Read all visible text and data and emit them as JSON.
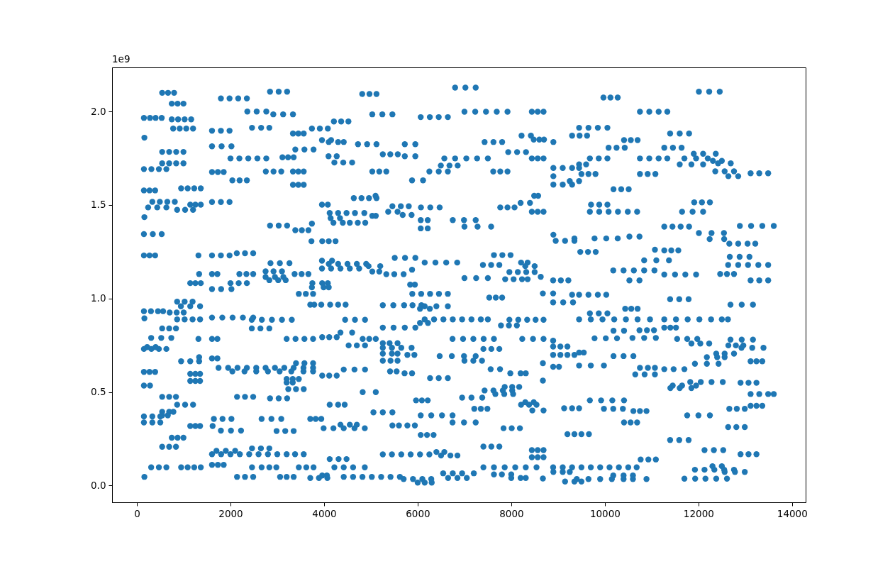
{
  "chart_data": {
    "type": "scatter",
    "color": "#1f77b4",
    "marker": "circle",
    "grid": false,
    "xlim": [
      -531,
      14291
    ],
    "ylim": [
      -0.09,
      2.236
    ],
    "xticks": [
      0,
      2000,
      4000,
      6000,
      8000,
      10000,
      12000,
      14000
    ],
    "yticks": [
      {
        "value": 0,
        "label": "0.0"
      },
      0.5,
      {
        "value": 1,
        "label": "1.0"
      },
      1.5,
      {
        "value": 2,
        "label": "2.0"
      }
    ],
    "annotations": [
      "1e9"
    ],
    "x": [
      540,
      665,
      795,
      745,
      870,
      995,
      150,
      280,
      400,
      530,
      745,
      880,
      1020,
      1160,
      775,
      915,
      1055,
      1200,
      160,
      540,
      690,
      840,
      995,
      540,
      690,
      840,
      995,
      150,
      310,
      470,
      630,
      150,
      270,
      390,
      945,
      1085,
      1225,
      1365,
      330,
      490,
      650,
      810,
      240,
      435,
      630,
      1140,
      1250,
      1365,
      860,
      1030,
      1200,
      160,
      150,
      340,
      530,
      150,
      270,
      390,
      1315,
      1795,
      1980,
      2165,
      2350,
      2845,
      3030,
      3210,
      2360,
      2560,
      2765,
      2915,
      3125,
      3335,
      2460,
      2655,
      2830,
      1605,
      1795,
      1980,
      3335,
      3450,
      3565,
      3740,
      3910,
      4080,
      4210,
      4365,
      4520,
      1605,
      1810,
      2020,
      3955,
      4150,
      4100,
      4300,
      4420,
      3385,
      3580,
      3775,
      2000,
      2190,
      2380,
      2575,
      2765,
      3110,
      3230,
      3350,
      4095,
      4270,
      4220,
      4410,
      4600,
      1605,
      1730,
      1855,
      2755,
      2920,
      3085,
      3335,
      3450,
      3565,
      2040,
      2195,
      2350,
      3335,
      3450,
      3565,
      1605,
      1795,
      1980,
      3955,
      4080,
      4120,
      4300,
      4480,
      4660,
      4860,
      4140,
      4340,
      4200,
      4400,
      4550,
      4720,
      4880,
      5030,
      5105,
      2845,
      3030,
      3210,
      3385,
      3525,
      3665,
      3740,
      3730,
      3960,
      4100,
      4245,
      1605,
      1795,
      1980,
      2135,
      2310,
      2485,
      3955,
      4170,
      2855,
      3055,
      3260,
      4100,
      4300,
      4500,
      4700,
      4900,
      3955,
      4150,
      4350,
      4550,
      4750,
      1330,
      1605,
      1720,
      2190,
      2340,
      2485,
      3370,
      3520,
      3665,
      2750,
      2920,
      3100,
      2750,
      2950,
      3130,
      2830,
      3020,
      3180,
      1140,
      1250,
      1365,
      2000,
      2175,
      2350,
      3750,
      3960,
      4080,
      1605,
      1800,
      2020,
      3740,
      3990,
      4100,
      3460,
      3610,
      3765,
      3705,
      3790,
      3940,
      4130,
      4300,
      4460,
      860,
      1020,
      1190,
      940,
      1140,
      1350,
      150,
      300,
      450,
      560,
      700,
      850,
      1000,
      160,
      860,
      1020,
      1190,
      1350,
      1605,
      1825,
      2045,
      2265,
      2485,
      2455,
      2670,
      2885,
      3100,
      3310,
      540,
      690,
      835,
      2455,
      2640,
      2830,
      305,
      520,
      735,
      1315,
      1605,
      1720,
      3200,
      3390,
      3580,
      3765,
      3960,
      4110,
      4270,
      150,
      310,
      470,
      630,
      220,
      400,
      945,
      1140,
      1330,
      1330,
      1605,
      1720,
      1745,
      1950,
      2150,
      2350,
      2550,
      2750,
      2950,
      3150,
      3350,
      3560,
      3765,
      2040,
      2300,
      2550,
      2800,
      3050,
      3300,
      3560,
      3765,
      3400,
      3580,
      3765,
      150,
      270,
      390,
      1140,
      1250,
      1350,
      1140,
      1250,
      1350,
      3960,
      4110,
      4270,
      3200,
      3330,
      3460,
      3200,
      3330,
      150,
      280,
      3235,
      3400,
      3565,
      540,
      690,
      835,
      2140,
      2310,
      2485,
      2845,
      3030,
      3210,
      860,
      1030,
      1200,
      4120,
      4300,
      4440,
      540,
      690,
      780,
      540,
      660,
      150,
      330,
      500,
      150,
      330,
      500,
      1645,
      1830,
      2020,
      2665,
      2875,
      3085,
      3705,
      3820,
      3940,
      1140,
      1250,
      1350,
      1618,
      1795,
      2010,
      2225,
      2985,
      3170,
      3350,
      3990,
      4200,
      4420,
      4650,
      4870,
      4350,
      4550,
      4700,
      745,
      870,
      995,
      540,
      690,
      835,
      1605,
      1800,
      2000,
      2200,
      2400,
      2600,
      2800,
      3000,
      3200,
      3380,
      3565,
      1700,
      1900,
      2100,
      2460,
      2650,
      2830,
      4120,
      4310,
      4480,
      1605,
      1730,
      1855,
      305,
      470,
      630,
      945,
      1085,
      1225,
      1365,
      2460,
      2665,
      2830,
      2980,
      3460,
      3620,
      3775,
      4220,
      4420,
      4620,
      4870,
      160,
      2140,
      2310,
      2485,
      3060,
      3200,
      3350,
      4420,
      4620,
      4820,
      5020,
      5220,
      5420,
      5620,
      3705,
      3890,
      4070,
      3960,
      4060,
      4815,
      4970,
      5120,
      6800,
      7020,
      7240,
      5030,
      5245,
      5460,
      6065,
      6260,
      6450,
      6645,
      7000,
      7230,
      7460,
      7690,
      7920,
      8440,
      8565,
      8690,
      9450,
      9650,
      9850,
      10055,
      8220,
      8420,
      9300,
      9460,
      9620,
      8480,
      8600,
      8700,
      8900,
      7430,
      7620,
      7805,
      4725,
      4920,
      5120,
      5725,
      5950,
      7935,
      8125,
      8315,
      5255,
      5415,
      5575,
      5725,
      5950,
      6570,
      6800,
      7040,
      7270,
      7500,
      8440,
      8565,
      8690,
      9680,
      9870,
      10055,
      6495,
      6680,
      6855,
      5030,
      5180,
      5330,
      6250,
      6450,
      6645,
      7615,
      7765,
      7920,
      5880,
      6115,
      8900,
      9100,
      9300,
      9450,
      8900,
      8900,
      9100,
      9300,
      9250,
      9450,
      9450,
      9600,
      9500,
      9650,
      9800,
      4635,
      4800,
      4960,
      5120,
      5100,
      5460,
      5640,
      5810,
      5370,
      5570,
      5680,
      5870,
      6070,
      6270,
      6470,
      6065,
      6215,
      6750,
      6990,
      7240,
      6065,
      6215,
      7000,
      7280,
      7570,
      7765,
      7920,
      8070,
      8200,
      8400,
      8490,
      8575,
      8440,
      8565,
      8690,
      8900,
      8950,
      9150,
      9350,
      9475,
      9640,
      9805,
      7630,
      7810,
      7985,
      5510,
      5730,
      5950,
      4950,
      5200,
      6150,
      6380,
      6610,
      6845,
      7395,
      7570,
      7745,
      8210,
      8350,
      8300,
      8500,
      7960,
      8140,
      8320,
      8500,
      7870,
      8050,
      8230,
      8350,
      8630,
      5030,
      5180,
      5330,
      5500,
      5700,
      5880,
      7000,
      7250,
      7500,
      8895,
      9060,
      9220,
      5840,
      5940,
      5885,
      6075,
      6265,
      6455,
      6645,
      7530,
      7670,
      7805,
      8675,
      8895,
      9300,
      9450,
      9650,
      9850,
      10030,
      8895,
      9110,
      9320,
      5255,
      5480,
      5710,
      5890,
      6080,
      6150,
      6400,
      6645,
      6050,
      6260,
      4450,
      4660,
      4875,
      6150,
      6350,
      6550,
      6750,
      6950,
      7150,
      7350,
      7500,
      6050,
      6220,
      7960,
      8150,
      8340,
      8520,
      8690,
      7780,
      7950,
      8120,
      9450,
      9700,
      9950,
      10200,
      10450,
      10700,
      10965,
      11270,
      11520,
      11770,
      12020,
      12270,
      12500,
      12630,
      5255,
      5485,
      5725,
      5950,
      4350,
      4600,
      4825,
      4965,
      5105,
      6745,
      6970,
      7190,
      7410,
      7630,
      8235,
      8465,
      8690,
      8895,
      8895,
      9050,
      9200,
      8895,
      9050,
      9200,
      9350,
      9450,
      9550,
      9780,
      10020,
      10260,
      10590,
      10840,
      11090,
      4525,
      4700,
      4875,
      5255,
      5400,
      5570,
      5255,
      5450,
      5650,
      5870,
      5255,
      5450,
      5570,
      5780,
      5930,
      5255,
      5420,
      5570,
      7405,
      7575,
      7745,
      6470,
      6730,
      6990,
      7240,
      7000,
      7190,
      7375,
      8676,
      8895,
      9020,
      9450,
      9700,
      9980,
      4420,
      4650,
      4875,
      5410,
      5550,
      5720,
      5880,
      7560,
      7760,
      7980,
      8200,
      8310,
      6265,
      6450,
      6645,
      8676,
      7860,
      8020,
      8170,
      7430,
      7620,
      7820,
      8020,
      7660,
      7850,
      8040,
      6950,
      7150,
      7380,
      4825,
      5105,
      5965,
      6090,
      6215,
      8210,
      8380,
      8540,
      8450,
      8690,
      8300,
      8480,
      7210,
      7350,
      7490,
      9130,
      9300,
      9450,
      9980,
      10180,
      10385,
      10610,
      10750,
      10890,
      5055,
      5255,
      5460,
      6065,
      6290,
      6520,
      6745,
      6745,
      6990,
      7240,
      5460,
      5600,
      5780,
      5940,
      7835,
      8010,
      8185,
      6065,
      6200,
      6340,
      9200,
      9350,
      9500,
      9660,
      7405,
      7575,
      7745,
      8440,
      8565,
      8690,
      8440,
      8565,
      8690,
      5255,
      5450,
      5650,
      5850,
      6050,
      6250,
      6400,
      6570,
      6500,
      6700,
      6850,
      7405,
      7630,
      7860,
      8085,
      8310,
      8540,
      8895,
      9100,
      9300,
      9500,
      9700,
      9900,
      10100,
      10300,
      10500,
      10680,
      11925,
      12130,
      12340,
      12550,
      12760,
      12300,
      12500,
      12560,
      12780,
      12990,
      5700,
      5900,
      6100,
      6290,
      6000,
      6150,
      6300,
      6545,
      6750,
      6950,
      7200,
      6650,
      6850,
      7050,
      7630,
      7800,
      8000,
      8000,
      8200,
      8310,
      8676,
      8900,
      9100,
      9250,
      9150,
      9350,
      9500,
      9970,
      10120,
      10275,
      12010,
      12230,
      12455,
      10750,
      10950,
      11150,
      11335,
      11395,
      11600,
      11800,
      10410,
      10555,
      10700,
      10080,
      10250,
      10425,
      11270,
      11455,
      11640,
      11900,
      12100,
      12370,
      10750,
      10950,
      11150,
      11335,
      11700,
      11950,
      12200,
      11600,
      11850,
      12100,
      12310,
      12500,
      12420,
      12690,
      12360,
      12560,
      12760,
      12640,
      12850,
      13115,
      13300,
      13490,
      10750,
      10915,
      11080,
      10185,
      10350,
      10510,
      11910,
      12075,
      12245,
      9705,
      9880,
      10055,
      9680,
      9880,
      10080,
      10280,
      10490,
      10690,
      11650,
      11875,
      12100,
      11270,
      11445,
      11620,
      11800,
      12885,
      13125,
      13365,
      13610,
      12010,
      12280,
      12545,
      12240,
      12550,
      12660,
      12850,
      13050,
      13215,
      9350,
      9780,
      10030,
      10275,
      10525,
      10740,
      11070,
      11270,
      11420,
      11570,
      12670,
      12880,
      13090,
      10840,
      11100,
      11370,
      12635,
      12850,
      13060,
      13280,
      13490,
      10180,
      10400,
      10620,
      10840,
      11060,
      11270,
      11500,
      11720,
      11950,
      12465,
      12610,
      12760,
      10525,
      10740,
      13115,
      13300,
      13490,
      11395,
      11590,
      11790,
      12685,
      12925,
      13165,
      10435,
      10565,
      10700,
      9680,
      9870,
      10055,
      10185,
      10410,
      10740,
      10900,
      11050,
      11270,
      11400,
      11520,
      11545,
      11760,
      11975,
      11850,
      12040,
      12230,
      12685,
      12925,
      13165,
      12640,
      12800,
      12960,
      12920,
      13150,
      13390,
      10185,
      10400,
      10610,
      12380,
      12560,
      12760,
      12180,
      12400,
      12560,
      13115,
      13240,
      13365,
      11925,
      12180,
      12430,
      10750,
      10920,
      11070,
      11270,
      11470,
      11700,
      10650,
      10850,
      11070,
      11825,
      12050,
      12280,
      12520,
      11450,
      11650,
      11950,
      11400,
      11600,
      11850,
      12900,
      13070,
      13240,
      13115,
      13300,
      13490,
      13610,
      9680,
      9920,
      10160,
      10410,
      13115,
      13240,
      13365,
      12660,
      12820,
      12990,
      11760,
      12000,
      12245,
      10410,
      10550,
      10690,
      12635,
      12810,
      12990,
      11395,
      11590,
      11790,
      12130,
      12330,
      12530,
      12900,
      13070,
      13240,
      10765,
      10930,
      11090,
      9400,
      9650,
      9900,
      10150,
      10400,
      10600,
      10890,
      10180,
      10400,
      10600,
      11700,
      11930,
      12150,
      12380,
      12610
    ],
    "values": [
      2.1,
      2.1,
      2.1,
      2.042,
      2.042,
      2.042,
      1.966,
      1.966,
      1.966,
      1.966,
      1.958,
      1.958,
      1.958,
      1.958,
      1.909,
      1.909,
      1.909,
      1.909,
      1.86,
      1.784,
      1.784,
      1.784,
      1.784,
      1.723,
      1.723,
      1.723,
      1.723,
      1.692,
      1.692,
      1.692,
      1.692,
      1.578,
      1.578,
      1.578,
      1.589,
      1.589,
      1.589,
      1.589,
      1.517,
      1.517,
      1.517,
      1.517,
      1.487,
      1.487,
      1.487,
      1.502,
      1.502,
      1.502,
      1.474,
      1.474,
      1.474,
      1.435,
      1.344,
      1.344,
      1.344,
      1.23,
      1.23,
      1.23,
      1.23,
      2.07,
      2.07,
      2.07,
      2.07,
      2.106,
      2.106,
      2.106,
      2,
      2,
      2,
      1.985,
      1.985,
      1.985,
      1.913,
      1.913,
      1.913,
      1.897,
      1.897,
      1.897,
      1.882,
      1.882,
      1.882,
      1.909,
      1.909,
      1.909,
      1.947,
      1.947,
      1.947,
      1.814,
      1.814,
      1.814,
      1.847,
      1.847,
      1.837,
      1.837,
      1.837,
      1.797,
      1.797,
      1.797,
      1.749,
      1.749,
      1.749,
      1.749,
      1.749,
      1.755,
      1.755,
      1.755,
      1.761,
      1.761,
      1.727,
      1.727,
      1.727,
      1.676,
      1.676,
      1.676,
      1.679,
      1.679,
      1.679,
      1.679,
      1.679,
      1.679,
      1.632,
      1.632,
      1.632,
      1.608,
      1.608,
      1.608,
      1.516,
      1.516,
      1.516,
      1.502,
      1.502,
      1.457,
      1.457,
      1.457,
      1.457,
      1.457,
      1.43,
      1.43,
      1.405,
      1.405,
      1.405,
      1.405,
      1.405,
      1.442,
      1.442,
      1.39,
      1.39,
      1.39,
      1.365,
      1.365,
      1.365,
      1.4,
      1.306,
      1.306,
      1.306,
      1.306,
      1.23,
      1.23,
      1.23,
      1.242,
      1.242,
      1.242,
      1.202,
      1.202,
      1.189,
      1.189,
      1.189,
      1.185,
      1.185,
      1.185,
      1.185,
      1.185,
      1.16,
      1.16,
      1.16,
      1.16,
      1.16,
      1.131,
      1.131,
      1.131,
      1.131,
      1.131,
      1.131,
      1.131,
      1.131,
      1.131,
      1.145,
      1.145,
      1.145,
      1.115,
      1.115,
      1.115,
      1.098,
      1.098,
      1.098,
      1.082,
      1.082,
      1.082,
      1.082,
      1.082,
      1.082,
      1.082,
      1.082,
      1.082,
      1.05,
      1.05,
      1.05,
      1.06,
      1.06,
      1.06,
      1.025,
      1.025,
      1.025,
      0.967,
      0.967,
      0.967,
      0.967,
      0.967,
      0.967,
      0.983,
      0.983,
      0.983,
      0.958,
      0.958,
      0.958,
      0.932,
      0.932,
      0.932,
      0.932,
      0.925,
      0.925,
      0.925,
      0.894,
      0.888,
      0.888,
      0.888,
      0.888,
      0.898,
      0.898,
      0.898,
      0.898,
      0.898,
      0.886,
      0.886,
      0.886,
      0.886,
      0.886,
      0.84,
      0.84,
      0.84,
      0.84,
      0.84,
      0.84,
      0.789,
      0.789,
      0.789,
      0.784,
      0.784,
      0.784,
      0.784,
      0.784,
      0.784,
      0.784,
      0.793,
      0.793,
      0.793,
      0.73,
      0.73,
      0.73,
      0.73,
      0.74,
      0.74,
      0.664,
      0.664,
      0.664,
      0.686,
      0.679,
      0.679,
      0.629,
      0.629,
      0.629,
      0.629,
      0.629,
      0.629,
      0.629,
      0.629,
      0.629,
      0.629,
      0.629,
      0.61,
      0.61,
      0.61,
      0.61,
      0.61,
      0.61,
      0.61,
      0.61,
      0.654,
      0.654,
      0.654,
      0.607,
      0.607,
      0.607,
      0.597,
      0.597,
      0.597,
      0.559,
      0.559,
      0.559,
      0.587,
      0.587,
      0.587,
      0.569,
      0.569,
      0.569,
      0.55,
      0.55,
      0.534,
      0.534,
      0.515,
      0.515,
      0.515,
      0.474,
      0.474,
      0.474,
      0.474,
      0.474,
      0.474,
      0.466,
      0.466,
      0.466,
      0.432,
      0.432,
      0.432,
      0.432,
      0.432,
      0.432,
      0.394,
      0.394,
      0.394,
      0.375,
      0.375,
      0.369,
      0.369,
      0.369,
      0.337,
      0.337,
      0.337,
      0.356,
      0.356,
      0.356,
      0.356,
      0.356,
      0.356,
      0.356,
      0.356,
      0.356,
      0.318,
      0.318,
      0.318,
      0.318,
      0.293,
      0.293,
      0.293,
      0.291,
      0.291,
      0.291,
      0.306,
      0.306,
      0.306,
      0.306,
      0.306,
      0.325,
      0.325,
      0.325,
      0.255,
      0.255,
      0.255,
      0.207,
      0.207,
      0.207,
      0.167,
      0.167,
      0.167,
      0.167,
      0.167,
      0.167,
      0.167,
      0.167,
      0.167,
      0.167,
      0.167,
      0.185,
      0.185,
      0.185,
      0.198,
      0.198,
      0.198,
      0.141,
      0.141,
      0.141,
      0.11,
      0.11,
      0.11,
      0.097,
      0.097,
      0.097,
      0.097,
      0.097,
      0.097,
      0.097,
      0.097,
      0.097,
      0.097,
      0.097,
      0.097,
      0.097,
      0.097,
      0.097,
      0.097,
      0.097,
      0.097,
      0.046,
      0.046,
      0.046,
      0.046,
      0.046,
      0.046,
      0.046,
      0.046,
      0.046,
      0.046,
      0.046,
      0.046,
      0.046,
      0.046,
      0.04,
      0.04,
      0.04,
      0.053,
      0.053,
      2.094,
      2.094,
      2.094,
      2.128,
      2.128,
      2.128,
      1.985,
      1.985,
      1.985,
      1.97,
      1.97,
      1.97,
      1.97,
      1.999,
      1.999,
      1.999,
      1.999,
      1.999,
      1.999,
      1.999,
      1.999,
      1.913,
      1.913,
      1.913,
      1.913,
      1.871,
      1.871,
      1.871,
      1.871,
      1.871,
      1.85,
      1.85,
      1.85,
      1.837,
      1.837,
      1.837,
      1.837,
      1.825,
      1.825,
      1.825,
      1.825,
      1.825,
      1.783,
      1.783,
      1.783,
      1.771,
      1.771,
      1.771,
      1.761,
      1.761,
      1.749,
      1.749,
      1.749,
      1.749,
      1.749,
      1.749,
      1.749,
      1.749,
      1.749,
      1.749,
      1.749,
      1.711,
      1.711,
      1.711,
      1.679,
      1.679,
      1.679,
      1.679,
      1.679,
      1.679,
      1.679,
      1.679,
      1.679,
      1.632,
      1.632,
      1.698,
      1.698,
      1.698,
      1.698,
      1.654,
      1.609,
      1.609,
      1.609,
      1.628,
      1.628,
      1.717,
      1.717,
      1.666,
      1.666,
      1.666,
      1.537,
      1.537,
      1.537,
      1.537,
      1.549,
      1.493,
      1.493,
      1.493,
      1.464,
      1.464,
      1.447,
      1.447,
      1.487,
      1.487,
      1.487,
      1.419,
      1.419,
      1.419,
      1.419,
      1.419,
      1.375,
      1.375,
      1.384,
      1.384,
      1.384,
      1.487,
      1.487,
      1.487,
      1.511,
      1.511,
      1.549,
      1.549,
      1.464,
      1.464,
      1.464,
      1.341,
      1.308,
      1.308,
      1.308,
      1.249,
      1.249,
      1.249,
      1.232,
      1.232,
      1.232,
      1.217,
      1.217,
      1.217,
      1.173,
      1.173,
      1.192,
      1.192,
      1.192,
      1.192,
      1.179,
      1.179,
      1.179,
      1.192,
      1.192,
      1.173,
      1.173,
      1.141,
      1.141,
      1.141,
      1.141,
      1.103,
      1.103,
      1.103,
      1.103,
      1.116,
      1.144,
      1.144,
      1.13,
      1.13,
      1.13,
      1.154,
      1.109,
      1.109,
      1.109,
      1.097,
      1.097,
      1.097,
      1.074,
      1.074,
      1.025,
      1.025,
      1.025,
      1.025,
      1.025,
      1.005,
      1.005,
      1.005,
      1.027,
      1.027,
      1.02,
      1.02,
      1.02,
      1.02,
      1.02,
      0.979,
      0.979,
      0.979,
      0.964,
      0.964,
      0.964,
      0.964,
      0.964,
      0.958,
      0.958,
      0.958,
      0.945,
      0.945,
      0.886,
      0.886,
      0.886,
      0.888,
      0.888,
      0.888,
      0.888,
      0.888,
      0.888,
      0.888,
      0.888,
      0.869,
      0.869,
      0.886,
      0.886,
      0.886,
      0.886,
      0.886,
      0.856,
      0.856,
      0.856,
      0.888,
      0.888,
      0.888,
      0.888,
      0.888,
      0.888,
      0.888,
      0.888,
      0.888,
      0.888,
      0.888,
      0.888,
      0.888,
      0.888,
      0.844,
      0.844,
      0.844,
      0.844,
      0.818,
      0.818,
      0.784,
      0.784,
      0.784,
      0.784,
      0.784,
      0.784,
      0.784,
      0.784,
      0.784,
      0.784,
      0.784,
      0.774,
      0.743,
      0.743,
      0.743,
      0.698,
      0.698,
      0.698,
      0.698,
      0.711,
      0.711,
      0.787,
      0.787,
      0.787,
      0.789,
      0.789,
      0.789,
      0.749,
      0.749,
      0.749,
      0.761,
      0.761,
      0.761,
      0.736,
      0.736,
      0.736,
      0.736,
      0.705,
      0.705,
      0.705,
      0.698,
      0.698,
      0.667,
      0.667,
      0.667,
      0.73,
      0.73,
      0.73,
      0.692,
      0.692,
      0.692,
      0.692,
      0.667,
      0.667,
      0.667,
      0.654,
      0.635,
      0.635,
      0.641,
      0.641,
      0.641,
      0.62,
      0.62,
      0.62,
      0.61,
      0.61,
      0.6,
      0.6,
      0.622,
      0.622,
      0.6,
      0.6,
      0.6,
      0.574,
      0.574,
      0.574,
      0.561,
      0.527,
      0.527,
      0.527,
      0.508,
      0.508,
      0.508,
      0.508,
      0.489,
      0.489,
      0.489,
      0.47,
      0.47,
      0.47,
      0.499,
      0.499,
      0.455,
      0.455,
      0.455,
      0.432,
      0.432,
      0.432,
      0.401,
      0.401,
      0.445,
      0.445,
      0.41,
      0.41,
      0.41,
      0.413,
      0.413,
      0.413,
      0.41,
      0.41,
      0.41,
      0.398,
      0.398,
      0.398,
      0.391,
      0.391,
      0.391,
      0.375,
      0.375,
      0.375,
      0.375,
      0.337,
      0.337,
      0.337,
      0.321,
      0.321,
      0.321,
      0.321,
      0.306,
      0.306,
      0.306,
      0.27,
      0.27,
      0.27,
      0.274,
      0.274,
      0.274,
      0.274,
      0.208,
      0.208,
      0.208,
      0.189,
      0.189,
      0.189,
      0.151,
      0.151,
      0.151,
      0.166,
      0.166,
      0.166,
      0.166,
      0.166,
      0.166,
      0.179,
      0.179,
      0.16,
      0.16,
      0.16,
      0.097,
      0.097,
      0.097,
      0.097,
      0.097,
      0.097,
      0.097,
      0.097,
      0.097,
      0.097,
      0.097,
      0.097,
      0.097,
      0.097,
      0.097,
      0.097,
      0.084,
      0.084,
      0.084,
      0.084,
      0.084,
      0.103,
      0.103,
      0.072,
      0.072,
      0.072,
      0.034,
      0.034,
      0.034,
      0.034,
      0.015,
      0.015,
      0.015,
      0.065,
      0.065,
      0.065,
      0.065,
      0.04,
      0.04,
      0.04,
      0.059,
      0.059,
      0.059,
      0.04,
      0.04,
      0.04,
      0.037,
      0.072,
      0.072,
      0.072,
      0.021,
      0.021,
      0.021,
      2.075,
      2.075,
      2.075,
      2.106,
      2.106,
      2.106,
      1.999,
      1.999,
      1.999,
      1.999,
      1.882,
      1.882,
      1.882,
      1.847,
      1.847,
      1.847,
      1.806,
      1.806,
      1.806,
      1.806,
      1.806,
      1.806,
      1.774,
      1.774,
      1.774,
      1.749,
      1.749,
      1.749,
      1.749,
      1.749,
      1.749,
      1.749,
      1.717,
      1.717,
      1.717,
      1.736,
      1.736,
      1.723,
      1.723,
      1.68,
      1.68,
      1.68,
      1.654,
      1.654,
      1.67,
      1.67,
      1.67,
      1.666,
      1.666,
      1.666,
      1.584,
      1.584,
      1.584,
      1.514,
      1.514,
      1.514,
      1.502,
      1.502,
      1.502,
      1.464,
      1.464,
      1.464,
      1.464,
      1.464,
      1.464,
      1.464,
      1.464,
      1.464,
      1.384,
      1.384,
      1.384,
      1.384,
      1.388,
      1.388,
      1.388,
      1.388,
      1.35,
      1.35,
      1.35,
      1.318,
      1.318,
      1.293,
      1.293,
      1.293,
      1.293,
      1.321,
      1.321,
      1.321,
      1.321,
      1.331,
      1.331,
      1.261,
      1.257,
      1.257,
      1.257,
      1.223,
      1.223,
      1.223,
      1.204,
      1.204,
      1.204,
      1.179,
      1.179,
      1.179,
      1.179,
      1.179,
      1.15,
      1.15,
      1.15,
      1.15,
      1.15,
      1.128,
      1.128,
      1.128,
      1.128,
      1.131,
      1.131,
      1.131,
      1.097,
      1.097,
      1.097,
      1.097,
      1.097,
      0.996,
      0.996,
      0.996,
      0.967,
      0.967,
      0.967,
      0.945,
      0.945,
      0.945,
      0.92,
      0.92,
      0.92,
      0.827,
      0.827,
      0.83,
      0.83,
      0.83,
      0.844,
      0.844,
      0.844,
      0.784,
      0.784,
      0.784,
      0.759,
      0.759,
      0.759,
      0.78,
      0.78,
      0.78,
      0.749,
      0.749,
      0.749,
      0.736,
      0.736,
      0.736,
      0.692,
      0.692,
      0.692,
      0.705,
      0.705,
      0.705,
      0.686,
      0.686,
      0.686,
      0.664,
      0.664,
      0.664,
      0.651,
      0.651,
      0.651,
      0.629,
      0.629,
      0.629,
      0.622,
      0.622,
      0.622,
      0.594,
      0.594,
      0.594,
      0.553,
      0.553,
      0.553,
      0.553,
      0.534,
      0.534,
      0.534,
      0.521,
      0.521,
      0.521,
      0.549,
      0.549,
      0.549,
      0.489,
      0.489,
      0.489,
      0.489,
      0.455,
      0.455,
      0.455,
      0.455,
      0.426,
      0.426,
      0.426,
      0.41,
      0.41,
      0.41,
      0.375,
      0.375,
      0.375,
      0.337,
      0.337,
      0.337,
      0.312,
      0.312,
      0.312,
      0.243,
      0.243,
      0.243,
      0.189,
      0.189,
      0.189,
      0.167,
      0.167,
      0.167,
      0.139,
      0.139,
      0.139,
      0.034,
      0.034,
      0.034,
      0.034,
      0.034,
      0.034,
      0.034,
      0.053,
      0.053,
      0.053,
      0.036,
      0.036,
      0.036,
      0.036,
      0.036
    ]
  }
}
